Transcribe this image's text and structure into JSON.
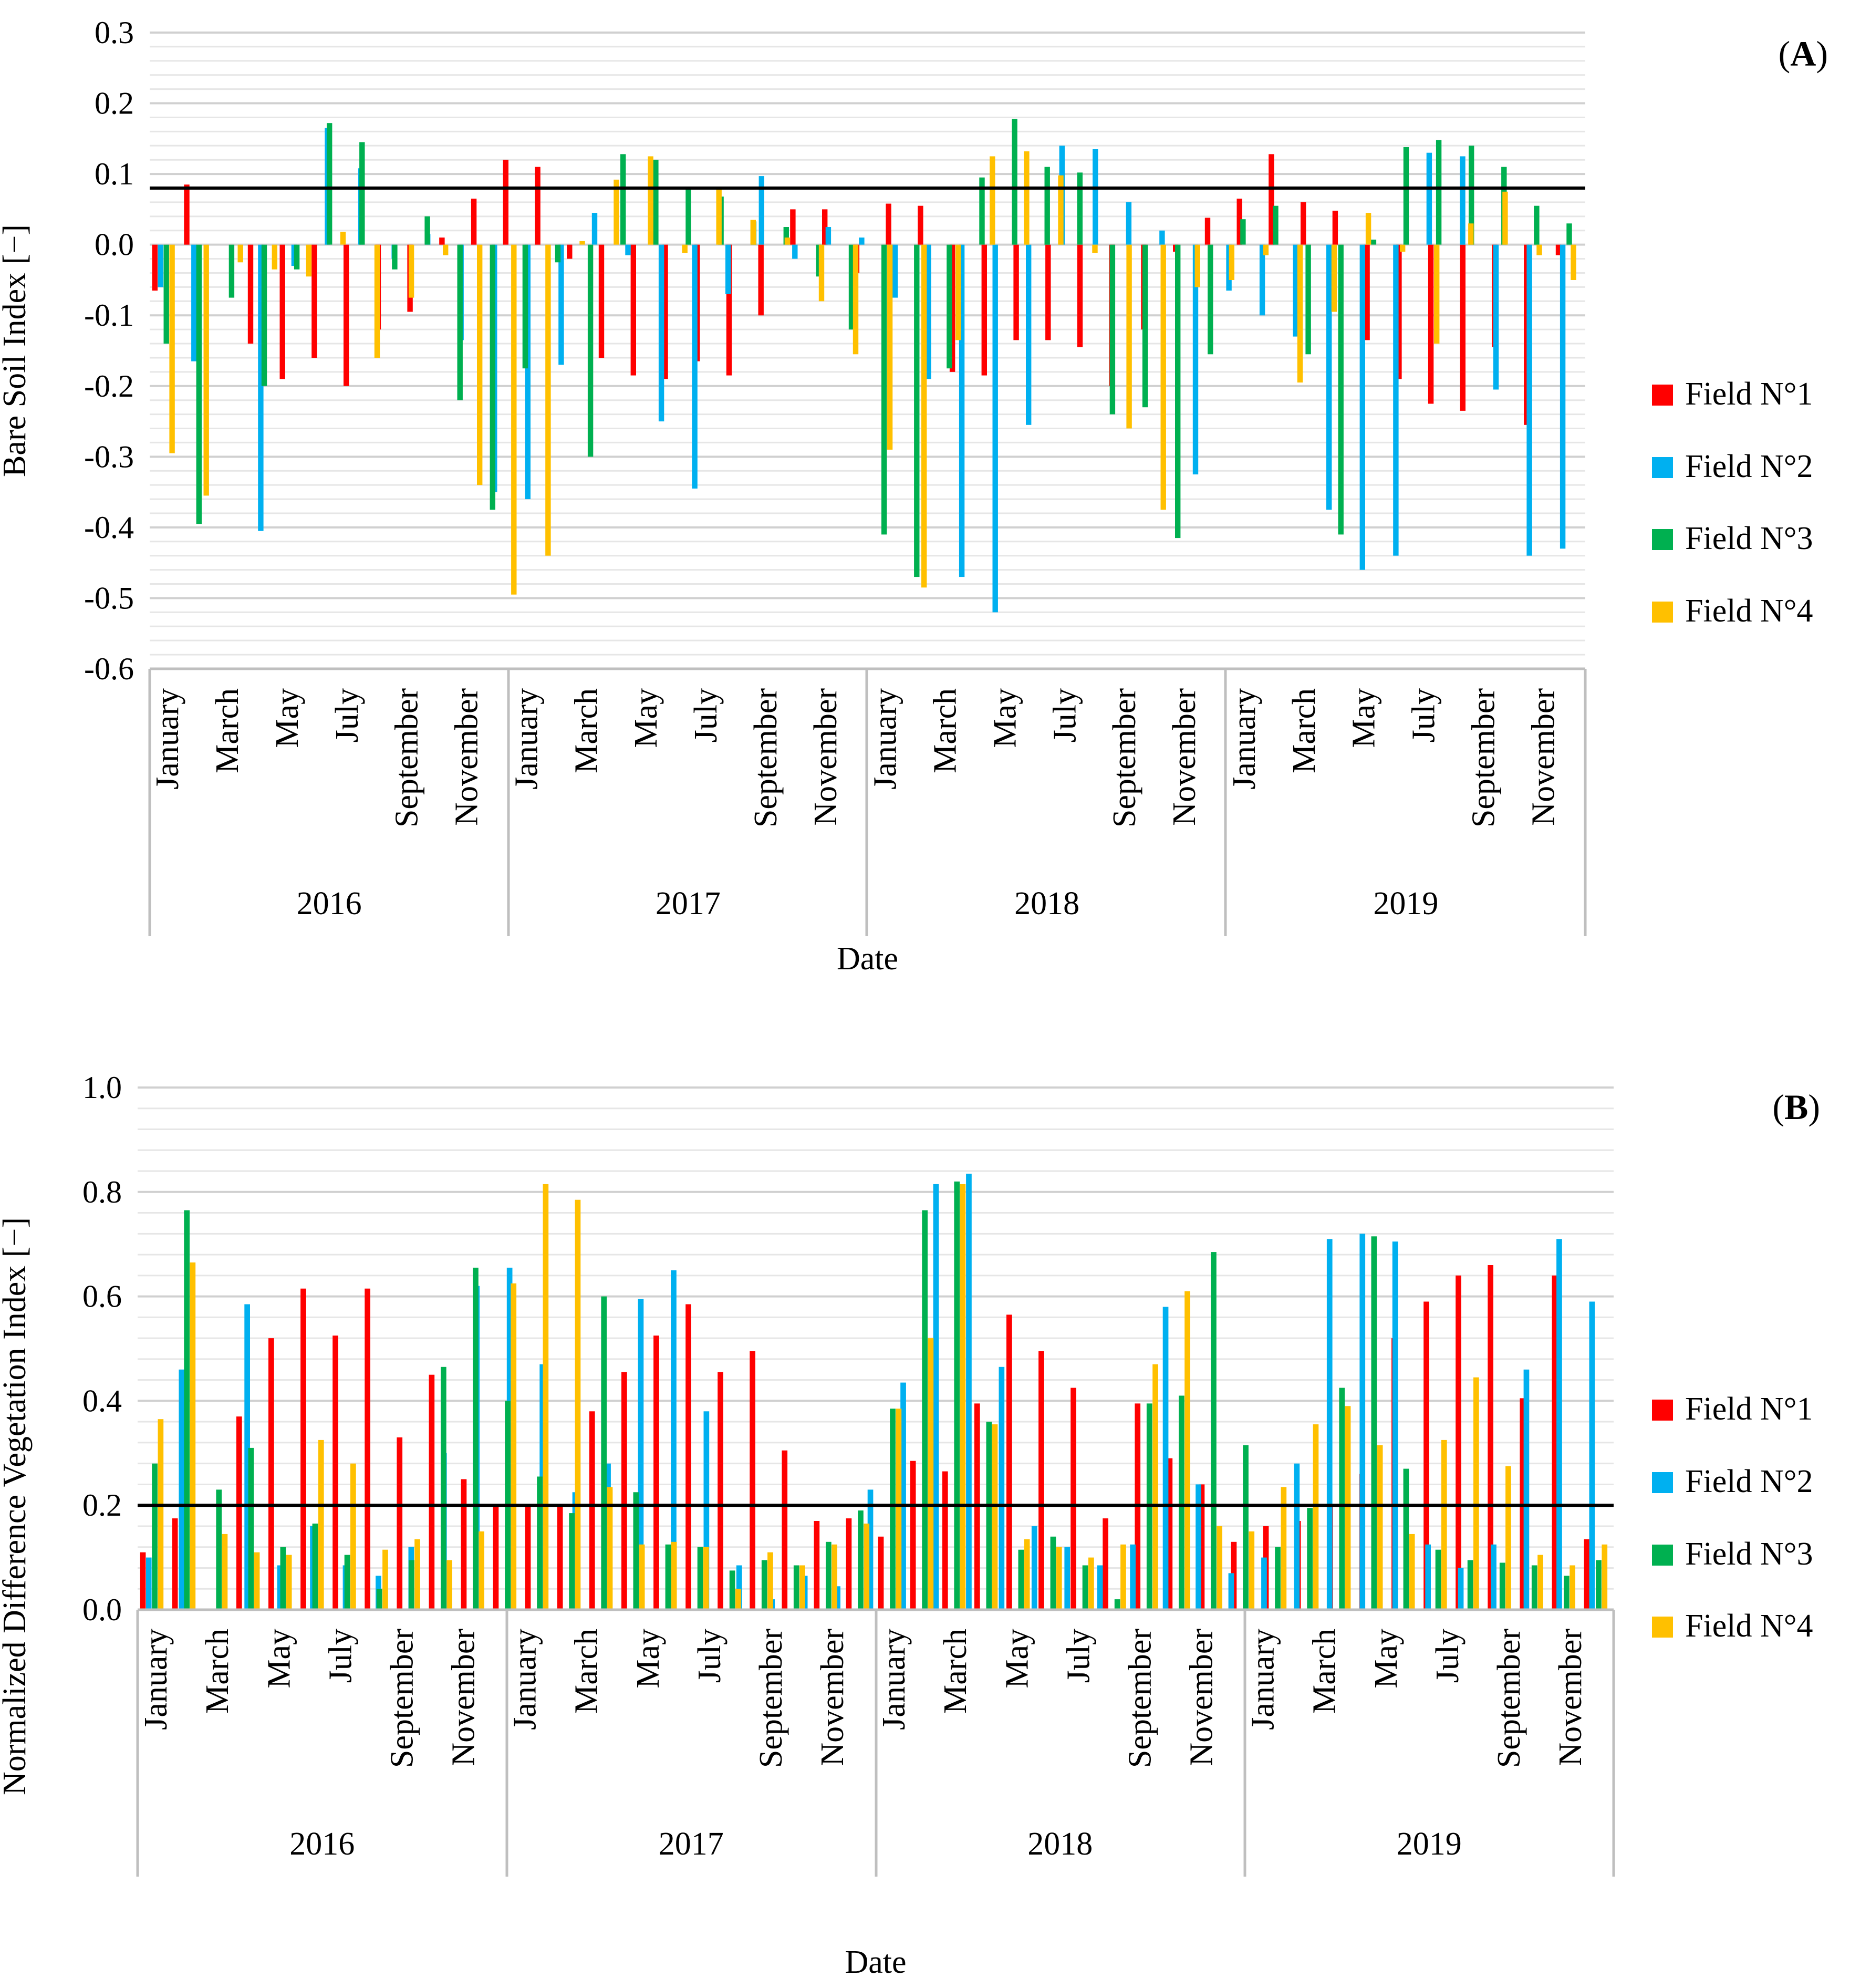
{
  "chart_data": [
    {
      "id": "A",
      "type": "bar",
      "panel_label": "A",
      "title": "",
      "xlabel": "Date",
      "ylabel": "Bare Soil Index [−]",
      "ylim": [
        -0.6,
        0.3
      ],
      "yticks": [
        0.3,
        0.2,
        0.1,
        0.0,
        -0.1,
        -0.2,
        -0.3,
        -0.4,
        -0.5,
        -0.6
      ],
      "ytick_labels": [
        "0.3",
        "0.2",
        "0.1",
        "0.0",
        "-0.1",
        "-0.2",
        "-0.3",
        "-0.4",
        "-0.5",
        "-0.6"
      ],
      "threshold": 0.08,
      "years": [
        "2016",
        "2017",
        "2018",
        "2019"
      ],
      "month_labels": [
        "January",
        "March",
        "May",
        "July",
        "September",
        "November"
      ],
      "legend": [
        "Field N°1",
        "Field N°2",
        "Field N°3",
        "Field N°4"
      ],
      "series": [
        {
          "name": "Field N°1",
          "color": "#ff0000",
          "values": [
            -0.065,
            0.085,
            null,
            -0.14,
            -0.19,
            -0.16,
            -0.2,
            -0.12,
            -0.095,
            0.01,
            0.065,
            0.12,
            0.11,
            -0.02,
            -0.16,
            -0.185,
            -0.19,
            -0.165,
            -0.185,
            -0.1,
            0.05,
            0.05,
            -0.04,
            0.058,
            0.055,
            -0.18,
            -0.185,
            -0.135,
            -0.135,
            -0.145,
            -0.2,
            -0.12,
            -0.01,
            0.038,
            0.065,
            0.128,
            0.06,
            0.048,
            -0.135,
            -0.19,
            -0.225,
            -0.235,
            -0.145,
            -0.255,
            -0.015
          ]
        },
        {
          "name": "Field N°2",
          "color": "#00b0f0",
          "values": [
            -0.06,
            -0.165,
            null,
            -0.405,
            -0.03,
            0.165,
            0.108,
            -0.02,
            0.015,
            -0.135,
            -0.35,
            -0.36,
            -0.17,
            0.045,
            -0.015,
            -0.25,
            -0.345,
            -0.07,
            0.097,
            -0.02,
            0.025,
            0.01,
            -0.075,
            -0.19,
            -0.47,
            -0.52,
            -0.255,
            0.14,
            0.135,
            0.06,
            0.02,
            -0.325,
            -0.065,
            -0.1,
            -0.13,
            -0.375,
            -0.46,
            -0.44,
            0.13,
            0.125,
            -0.205,
            -0.44,
            -0.43
          ]
        },
        {
          "name": "Field N°3",
          "color": "#00b050",
          "values": [
            -0.14,
            -0.395,
            -0.075,
            -0.2,
            -0.035,
            0.172,
            0.145,
            -0.035,
            0.04,
            -0.22,
            -0.375,
            -0.175,
            -0.025,
            -0.3,
            0.128,
            0.12,
            0.078,
            0.068,
            0.033,
            0.025,
            -0.045,
            -0.12,
            -0.41,
            -0.47,
            -0.175,
            0.095,
            0.178,
            0.11,
            0.102,
            -0.24,
            -0.23,
            -0.415,
            -0.155,
            0.036,
            0.055,
            -0.155,
            -0.41,
            0.007,
            0.138,
            0.148,
            0.14,
            0.11,
            0.055,
            0.03
          ]
        },
        {
          "name": "Field N°4",
          "color": "#ffc000",
          "values": [
            -0.295,
            -0.355,
            -0.025,
            -0.035,
            -0.045,
            0.018,
            -0.16,
            -0.075,
            -0.015,
            -0.34,
            -0.495,
            -0.44,
            0.005,
            0.092,
            0.125,
            -0.012,
            0.078,
            0.035,
            0.01,
            -0.08,
            -0.155,
            -0.29,
            -0.485,
            -0.135,
            0.125,
            0.132,
            0.098,
            -0.012,
            -0.26,
            -0.375,
            -0.06,
            -0.05,
            -0.015,
            -0.195,
            -0.095,
            0.045,
            -0.01,
            -0.14,
            0.03,
            0.075,
            -0.015,
            -0.05
          ]
        }
      ]
    },
    {
      "id": "B",
      "type": "bar",
      "panel_label": "B",
      "title": "",
      "xlabel": "Date",
      "ylabel": "Normalized Difference Vegetation Index [−]",
      "ylim": [
        0.0,
        1.0
      ],
      "yticks": [
        1.0,
        0.8,
        0.6,
        0.4,
        0.2,
        0.0
      ],
      "ytick_labels": [
        "1.0",
        "0.8",
        "0.6",
        "0.4",
        "0.2",
        "0.0"
      ],
      "threshold": 0.2,
      "years": [
        "2016",
        "2017",
        "2018",
        "2019"
      ],
      "month_labels": [
        "January",
        "March",
        "May",
        "July",
        "September",
        "November"
      ],
      "legend": [
        "Field N°1",
        "Field N°2",
        "Field N°3",
        "Field N°4"
      ],
      "series": [
        {
          "name": "Field N°1",
          "color": "#ff0000",
          "values": [
            0.11,
            0.175,
            null,
            0.37,
            0.52,
            0.615,
            0.525,
            0.615,
            0.33,
            0.45,
            0.25,
            0.2,
            0.2,
            0.2,
            0.38,
            0.455,
            0.525,
            0.585,
            0.455,
            0.495,
            0.305,
            0.17,
            0.175,
            0.14,
            0.285,
            0.265,
            0.395,
            0.565,
            0.495,
            0.425,
            0.175,
            0.395,
            0.29,
            0.24,
            0.13,
            0.16,
            0.17,
            0.2,
            0.26,
            0.52,
            0.59,
            0.64,
            0.66,
            0.405,
            0.64,
            0.135
          ]
        },
        {
          "name": "Field N°2",
          "color": "#00b0f0",
          "values": [
            0.1,
            0.46,
            null,
            0.585,
            0.085,
            0.16,
            0.085,
            0.065,
            0.12,
            0.3,
            0.62,
            0.655,
            0.47,
            0.225,
            0.28,
            0.595,
            0.65,
            0.38,
            0.085,
            0.02,
            0.065,
            0.045,
            0.23,
            0.435,
            0.815,
            0.835,
            0.465,
            0.16,
            0.12,
            0.085,
            0.125,
            0.58,
            0.24,
            0.07,
            0.1,
            0.28,
            0.71,
            0.72,
            0.705,
            0.125,
            0.08,
            0.125,
            0.46,
            0.71,
            0.59
          ]
        },
        {
          "name": "Field N°3",
          "color": "#00b050",
          "values": [
            0.28,
            0.765,
            0.23,
            0.31,
            0.12,
            0.165,
            0.105,
            0.04,
            0.095,
            0.465,
            0.655,
            0.4,
            0.255,
            0.185,
            0.6,
            0.225,
            0.125,
            0.12,
            0.075,
            0.095,
            0.085,
            0.13,
            0.19,
            0.385,
            0.765,
            0.82,
            0.36,
            0.115,
            0.14,
            0.085,
            0.02,
            0.395,
            0.41,
            0.685,
            0.315,
            0.12,
            0.195,
            0.425,
            0.715,
            0.27,
            0.115,
            0.095,
            0.09,
            0.085,
            0.065,
            0.095
          ]
        },
        {
          "name": "Field N°4",
          "color": "#ffc000",
          "values": [
            0.365,
            0.665,
            0.145,
            0.11,
            0.105,
            0.325,
            0.28,
            0.115,
            0.135,
            0.095,
            0.15,
            0.625,
            0.815,
            0.785,
            0.235,
            0.125,
            0.13,
            0.12,
            0.04,
            0.11,
            0.085,
            0.125,
            0.165,
            0.385,
            0.52,
            0.815,
            0.355,
            0.135,
            0.12,
            0.1,
            0.125,
            0.47,
            0.61,
            0.16,
            0.15,
            0.235,
            0.355,
            0.39,
            0.315,
            0.145,
            0.325,
            0.445,
            0.275,
            0.105,
            0.085,
            0.125
          ]
        }
      ]
    }
  ]
}
